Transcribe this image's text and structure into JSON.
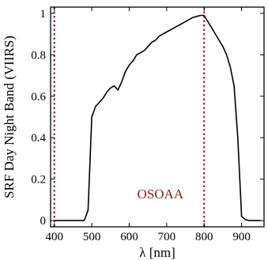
{
  "chart_data": {
    "type": "line",
    "title": "",
    "xlabel": "λ [nm]",
    "ylabel": "SRF Day Night Band (VIIRS)",
    "xlim": [
      390,
      960
    ],
    "ylim": [
      -0.03,
      1.03
    ],
    "xticks": [
      400,
      500,
      600,
      700,
      800,
      900
    ],
    "yticks": [
      0,
      0.2,
      0.4,
      0.6,
      0.8,
      1
    ],
    "ytick_labels": [
      "0",
      "0.2",
      "0.4",
      "0.6",
      "0.8",
      "1"
    ],
    "grid": false,
    "legend": "none",
    "series": [
      {
        "color": "#000000",
        "x": [
          400,
          480,
          490,
          500,
          510,
          520,
          530,
          540,
          550,
          560,
          570,
          580,
          590,
          600,
          610,
          620,
          630,
          640,
          650,
          660,
          670,
          680,
          690,
          700,
          710,
          720,
          730,
          740,
          750,
          760,
          770,
          780,
          790,
          800,
          810,
          820,
          830,
          840,
          850,
          860,
          870,
          880,
          890,
          900,
          910,
          920,
          950
        ],
        "y": [
          0,
          0,
          0.05,
          0.5,
          0.55,
          0.57,
          0.59,
          0.62,
          0.64,
          0.65,
          0.63,
          0.67,
          0.72,
          0.75,
          0.77,
          0.8,
          0.81,
          0.82,
          0.84,
          0.86,
          0.87,
          0.89,
          0.9,
          0.91,
          0.92,
          0.93,
          0.94,
          0.95,
          0.96,
          0.97,
          0.98,
          0.985,
          0.99,
          0.99,
          0.96,
          0.93,
          0.9,
          0.87,
          0.84,
          0.8,
          0.74,
          0.65,
          0.4,
          0.02,
          0.005,
          0,
          0
        ]
      }
    ],
    "vlines": [
      {
        "x": 400,
        "color": "#8b1a1a",
        "style": "dotted"
      },
      {
        "x": 800,
        "color": "#8b1a1a",
        "style": "dotted"
      }
    ],
    "annotations": [
      {
        "text": "OSOAA",
        "x": 700,
        "y": 0.13,
        "color": "#8b1a1a"
      }
    ]
  }
}
